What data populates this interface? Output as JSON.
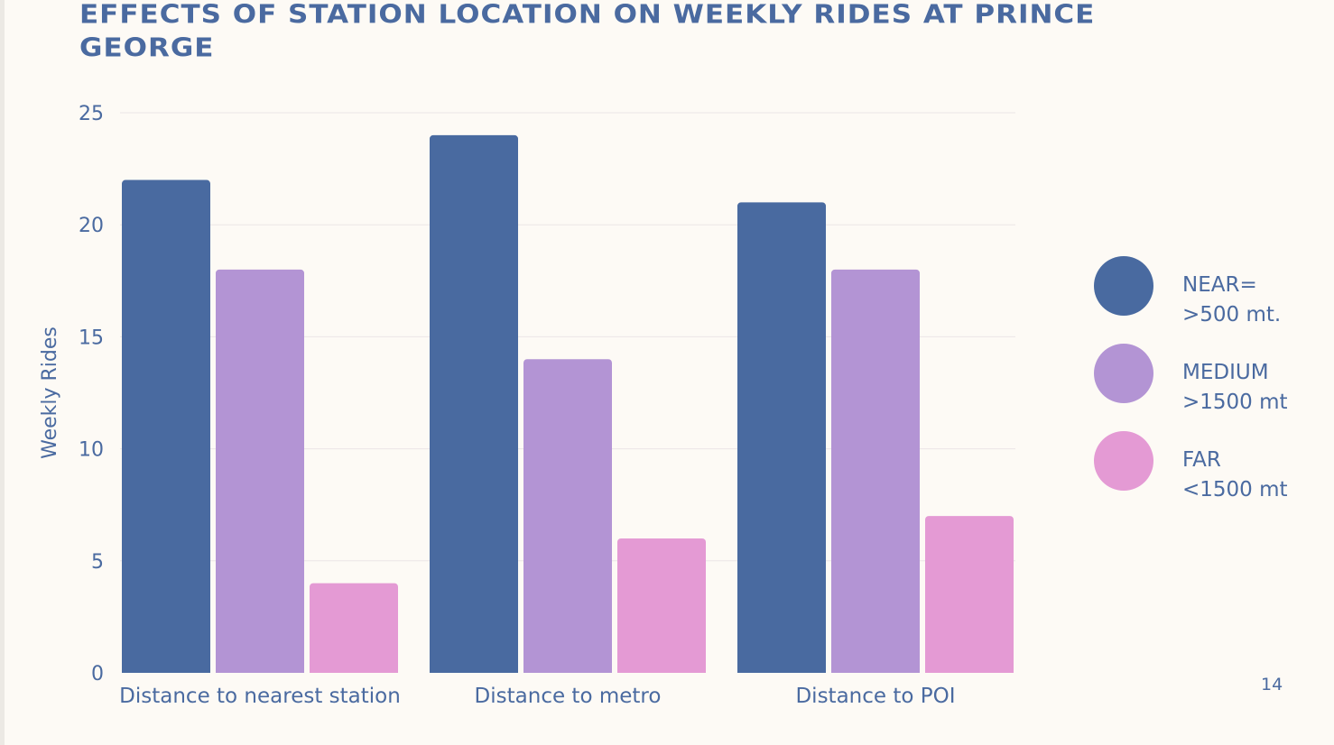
{
  "slide": {
    "title": "EFFECTS OF STATION LOCATION ON WEEKLY RIDES AT PRINCE GEORGE",
    "page_number": "14"
  },
  "legend": {
    "items": [
      {
        "label": "NEAR=\n>500 mt.",
        "color": "#496aa0"
      },
      {
        "label": "MEDIUM\n>1500 mt",
        "color": "#b394d4"
      },
      {
        "label": "FAR\n<1500 mt",
        "color": "#e49ad4"
      }
    ]
  },
  "chart_data": {
    "type": "bar",
    "title": "EFFECTS OF STATION LOCATION ON WEEKLY RIDES AT PRINCE GEORGE",
    "xlabel": "",
    "ylabel": "Weekly Rides",
    "ylim": [
      0,
      25
    ],
    "yticks": [
      0,
      5,
      10,
      15,
      20,
      25
    ],
    "grid": true,
    "legend_position": "right",
    "categories": [
      "Distance to nearest station",
      "Distance to metro",
      "Distance to POI"
    ],
    "series": [
      {
        "name": "NEAR=\n>500 mt.",
        "color": "#496aa0",
        "values": [
          22,
          24,
          21
        ]
      },
      {
        "name": "MEDIUM\n>1500 mt",
        "color": "#b394d4",
        "values": [
          18,
          14,
          18
        ]
      },
      {
        "name": "FAR\n<1500 mt",
        "color": "#e49ad4",
        "values": [
          4,
          6,
          7
        ]
      }
    ]
  }
}
